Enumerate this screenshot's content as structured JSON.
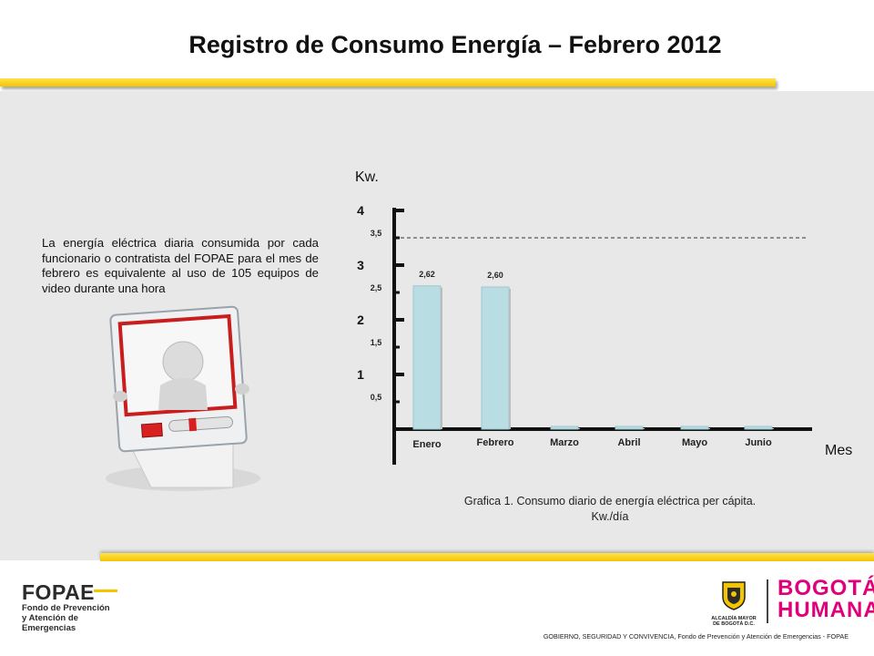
{
  "title": "Registro de Consumo Energía – Febrero 2012",
  "description": "La energía eléctrica diaria consumida por cada funcionario o contratista del FOPAE para el mes de febrero es equivalente al uso de 105 equipos de video durante una hora",
  "caption_line1": "Grafica 1. Consumo diario de energía eléctrica per cápita.",
  "caption_line2": "Kw./día",
  "footer_text": "GOBIERNO, SEGURIDAD Y CONVIVENCIA, Fondo de Prevención y Atención de Emergencias - FOPAE",
  "logos": {
    "fopae_big": "FOPAE",
    "fopae_line1": "Fondo de Prevención",
    "fopae_line2": "y Atención de Emergencias",
    "alcaldia_line1": "ALCALDÍA MAYOR",
    "alcaldia_line2": "DE BOGOTÁ D.C.",
    "bogota_line1": "BOGOTÁ",
    "bogota_line2": "HUMANA"
  },
  "colors": {
    "accent_yellow": "#f3c400",
    "bar_fill": "#b8dde3",
    "panel_bg": "#e8e8e8",
    "bogota_magenta": "#e0007a"
  },
  "chart_data": {
    "type": "bar",
    "categories": [
      "Enero",
      "Febrero",
      "Marzo",
      "Abril",
      "Mayo",
      "Junio"
    ],
    "values": [
      2.62,
      2.6,
      0.05,
      0.05,
      0.05,
      0.05
    ],
    "data_labels": [
      "2,62",
      "2,60",
      "",
      "",
      "",
      ""
    ],
    "ylabel": "Kw.",
    "xlabel": "Mes",
    "ylim": [
      0,
      4
    ],
    "major_ticks": [
      "1",
      "2",
      "3",
      "4"
    ],
    "minor_ticks": [
      "0,5",
      "1,5",
      "2,5",
      "3,5"
    ],
    "reference_line": {
      "value": 3.5,
      "style": "dashed"
    },
    "grid": false,
    "legend": "none"
  }
}
